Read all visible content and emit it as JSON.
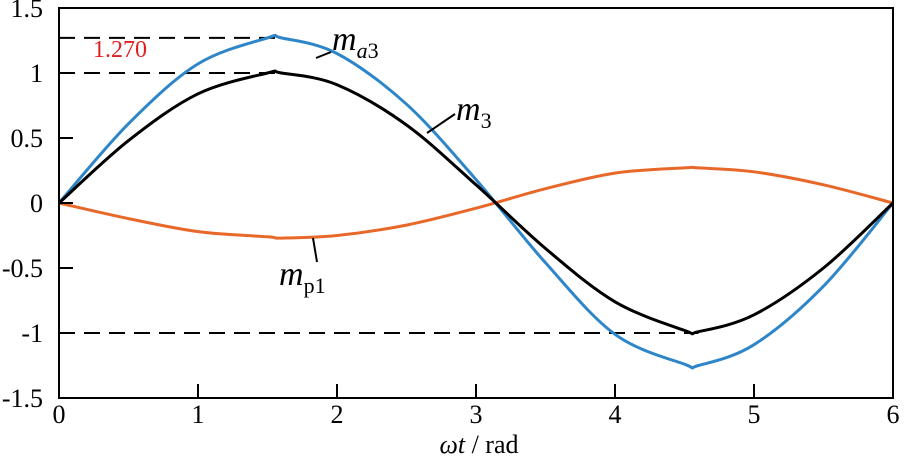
{
  "chart_data": {
    "type": "line",
    "xlabel": {
      "italic": "ωt",
      "rest": " / rad"
    },
    "xlim": [
      0,
      6
    ],
    "ylim": [
      -1.5,
      1.5
    ],
    "xticks": [
      0,
      1,
      2,
      3,
      4,
      5,
      6
    ],
    "xtick_labels": [
      "0",
      "1",
      "2",
      "3",
      "4",
      "5",
      "6"
    ],
    "yticks": [
      -1.5,
      -1,
      -0.5,
      0,
      0.5,
      1,
      1.5
    ],
    "ytick_labels": [
      "-1.5",
      "-1",
      "-0.5",
      "0",
      "0.5",
      "1",
      "1.5"
    ],
    "grid": false,
    "series": [
      {
        "name_main": "m",
        "name_sub": "a3",
        "sub_italic_first": true,
        "color": "#2E86C8",
        "x": [
          0,
          0.5,
          1.0,
          1.5,
          1.6,
          2.0,
          2.5,
          3.0,
          3.5,
          4.0,
          4.5,
          4.6,
          5.0,
          5.5,
          6.0
        ],
        "y": [
          0,
          0.61,
          1.07,
          1.27,
          1.27,
          1.15,
          0.76,
          0.18,
          -0.46,
          -1.01,
          -1.24,
          -1.25,
          -1.09,
          -0.64,
          0
        ]
      },
      {
        "name_main": "m",
        "name_sub": "3",
        "sub_italic_first": false,
        "color": "#000000",
        "x": [
          0,
          0.5,
          1.0,
          1.5,
          1.6,
          2.0,
          2.5,
          3.0,
          3.5,
          4.0,
          4.5,
          4.6,
          5.0,
          5.5,
          6.0
        ],
        "y": [
          0,
          0.48,
          0.84,
          1.0,
          1.0,
          0.91,
          0.6,
          0.14,
          -0.35,
          -0.76,
          -0.98,
          -0.99,
          -0.86,
          -0.5,
          0
        ]
      },
      {
        "name_main": "m",
        "name_sub": "p1",
        "sub_italic_first": false,
        "color": "#E8682A",
        "x": [
          0,
          0.5,
          1.0,
          1.5,
          1.6,
          2.0,
          2.5,
          3.0,
          3.5,
          4.0,
          4.5,
          4.6,
          5.0,
          5.5,
          6.0
        ],
        "y": [
          0,
          -0.12,
          -0.22,
          -0.26,
          -0.27,
          -0.25,
          -0.17,
          -0.04,
          0.11,
          0.23,
          0.27,
          0.27,
          0.24,
          0.14,
          0
        ]
      }
    ],
    "reference_lines": [
      {
        "y": 1.27,
        "x_from": 0,
        "x_to": 1.6
      },
      {
        "y": 1.0,
        "x_from": 0,
        "x_to": 1.6
      },
      {
        "y": -1.0,
        "x_from": 0,
        "x_to": 4.6
      }
    ],
    "annotations": [
      {
        "text": "1.270",
        "color": "#E02020"
      }
    ]
  }
}
